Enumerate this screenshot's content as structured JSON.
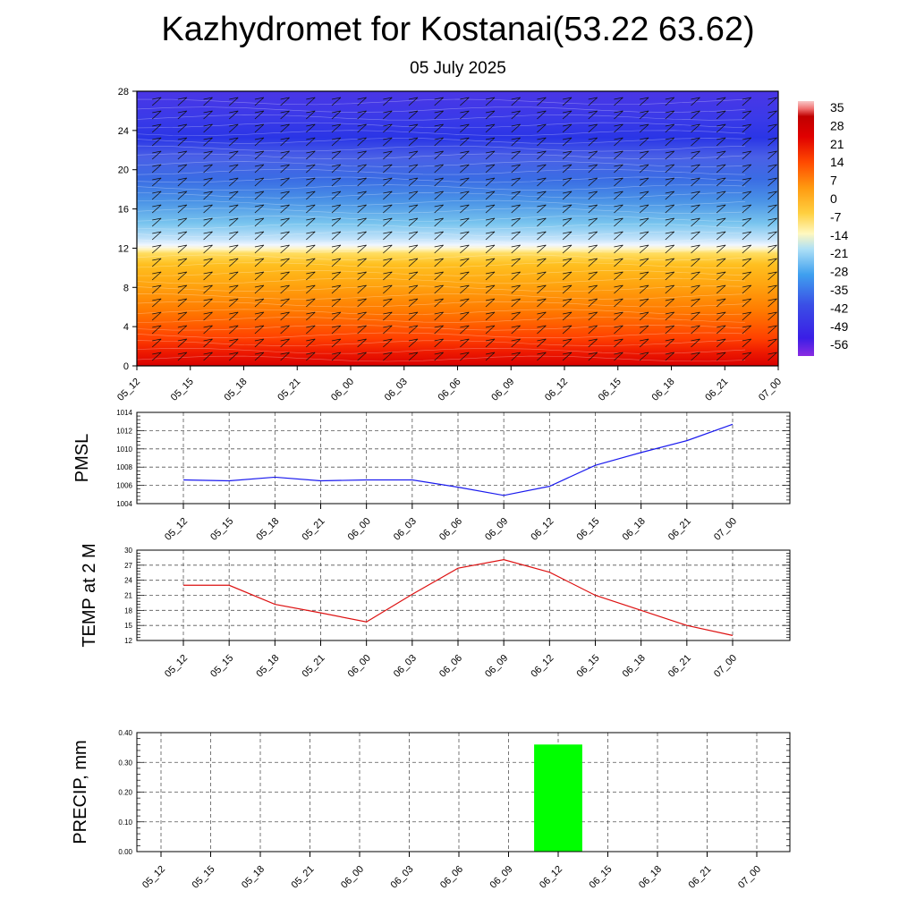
{
  "title": "Kazhydromet for Kostanai(53.22 63.62)",
  "subtitle": "05 July 2025",
  "colors": {
    "pmsl_line": "#1a1aee",
    "temp_line": "#dd1111",
    "precip_bar": "#00ff00",
    "grid": "#000000"
  },
  "chart_data": [
    {
      "type": "heatmap",
      "name": "cross-section",
      "x": [
        "05_12",
        "05_15",
        "05_18",
        "05_21",
        "06_00",
        "06_03",
        "06_06",
        "06_09",
        "06_12",
        "06_15",
        "06_18",
        "06_21",
        "07_00"
      ],
      "y_ticks": [
        0,
        4,
        8,
        12,
        16,
        20,
        24,
        28
      ],
      "ylim": [
        0,
        28
      ],
      "colorbar_labels": [
        "35",
        "28",
        "21",
        "14",
        "7",
        "0",
        "-7",
        "-14",
        "-21",
        "-28",
        "-35",
        "-42",
        "-49",
        "-56"
      ],
      "wind_barbs": true
    },
    {
      "type": "line",
      "name": "pmsl",
      "ylabel": "PMSL",
      "x": [
        "05_12",
        "05_15",
        "05_18",
        "05_21",
        "06_00",
        "06_03",
        "06_06",
        "06_09",
        "06_12",
        "06_15",
        "06_18",
        "06_21",
        "07_00"
      ],
      "values": [
        1006.6,
        1006.5,
        1006.9,
        1006.5,
        1006.6,
        1006.6,
        1005.8,
        1004.9,
        1005.9,
        1008.2,
        1009.6,
        1010.9,
        1012.7
      ],
      "ylim": [
        1004,
        1014
      ],
      "y_ticks": [
        "1004",
        "1006",
        "1008",
        "1010",
        "1012",
        "1014"
      ],
      "grid": true
    },
    {
      "type": "line",
      "name": "temp",
      "ylabel": "TEMP at 2 M",
      "x": [
        "05_12",
        "05_15",
        "05_18",
        "05_21",
        "06_00",
        "06_03",
        "06_06",
        "06_09",
        "06_12",
        "06_15",
        "06_18",
        "06_21",
        "07_00"
      ],
      "values": [
        23.0,
        23.0,
        19.2,
        17.5,
        15.7,
        21.2,
        26.4,
        28.1,
        25.6,
        21.0,
        18.0,
        15.0,
        13.0
      ],
      "ylim": [
        12,
        30
      ],
      "y_ticks": [
        "12",
        "15",
        "18",
        "21",
        "24",
        "27",
        "30"
      ],
      "grid": true
    },
    {
      "type": "bar",
      "name": "precip",
      "ylabel": "PRECIP, mm",
      "categories": [
        "05_12",
        "05_15",
        "05_18",
        "05_21",
        "06_00",
        "06_03",
        "06_06",
        "06_09",
        "06_12",
        "06_15",
        "06_18",
        "06_21",
        "07_00"
      ],
      "values": [
        0,
        0,
        0,
        0,
        0,
        0,
        0,
        0,
        0.36,
        0,
        0,
        0,
        0
      ],
      "ylim": [
        0,
        0.4
      ],
      "y_ticks": [
        "0.00",
        "0.10",
        "0.20",
        "0.30",
        "0.40"
      ],
      "grid": true
    }
  ]
}
